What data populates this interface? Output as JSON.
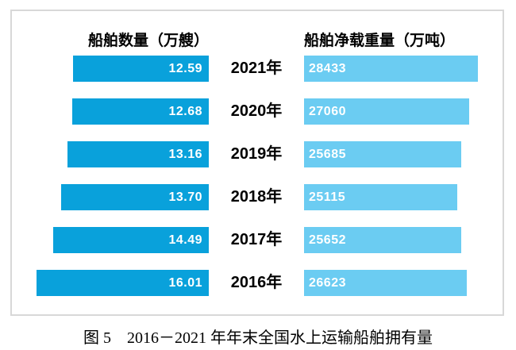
{
  "figure": {
    "caption": "图 5　2016－2021 年年末全国水上运输船舶拥有量"
  },
  "chart_data": {
    "type": "bar",
    "subtype": "horizontal-mirrored-paired",
    "figure_label": "图 5",
    "title": "2016－2021 年年末全国水上运输船舶拥有量",
    "categories": [
      "2021年",
      "2020年",
      "2019年",
      "2018年",
      "2017年",
      "2016年"
    ],
    "series": [
      {
        "name": "船舶数量（万艘）",
        "side": "left",
        "direction": "right-to-left",
        "color": "#09a1db",
        "values": [
          12.59,
          12.68,
          13.16,
          13.7,
          14.49,
          16.01
        ],
        "labels": [
          "12.59",
          "12.68",
          "13.16",
          "13.70",
          "14.49",
          "16.01"
        ],
        "axis_range": [
          0,
          16.01
        ]
      },
      {
        "name": "船舶净载重量（万吨）",
        "side": "right",
        "direction": "left-to-right",
        "color": "#6bccf2",
        "values": [
          28433,
          27060,
          25685,
          25115,
          25652,
          26623
        ],
        "labels": [
          "28433",
          "27060",
          "25685",
          "25115",
          "25652",
          "26623"
        ],
        "axis_range": [
          0,
          28433
        ]
      }
    ],
    "grid": false,
    "legend_position": "top-as-column-headers",
    "value_labels": "inside-bar-white",
    "border_color": "#d8d8d8"
  }
}
